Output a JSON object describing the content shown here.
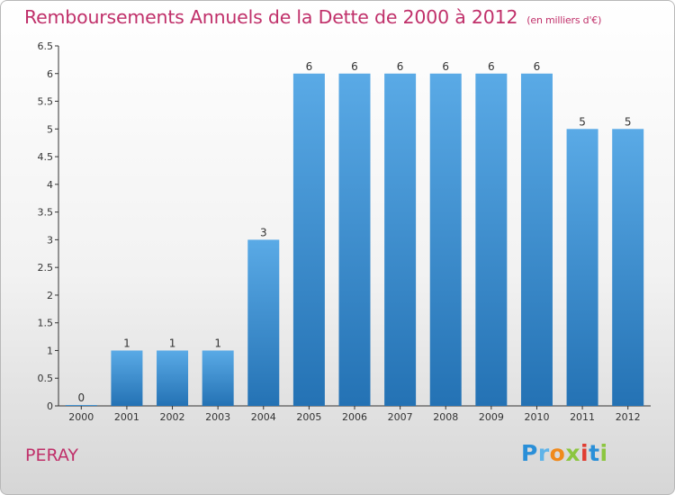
{
  "title": "Remboursements Annuels de la Dette de 2000 à 2012",
  "unit": "(en milliers d'€)",
  "commune": "PERAY",
  "logo": [
    "P",
    "r",
    "o",
    "x",
    "i",
    "t",
    "i"
  ],
  "colors": {
    "bar_top": "#5aaae6",
    "bar_bottom": "#2472b4",
    "title": "#c0306a",
    "axis": "#333333"
  },
  "chart_data": {
    "type": "bar",
    "categories": [
      "2000",
      "2001",
      "2002",
      "2003",
      "2004",
      "2005",
      "2006",
      "2007",
      "2008",
      "2009",
      "2010",
      "2011",
      "2012"
    ],
    "values": [
      0,
      1,
      1,
      1,
      3,
      6,
      6,
      6,
      6,
      6,
      6,
      5,
      5
    ],
    "data_labels": [
      "0",
      "1",
      "1",
      "1",
      "3",
      "6",
      "6",
      "6",
      "6",
      "6",
      "6",
      "5",
      "5"
    ],
    "ylim": [
      0,
      6.5
    ],
    "yticks": [
      "0",
      "0.5",
      "1",
      "1.5",
      "2",
      "2.5",
      "3",
      "3.5",
      "4",
      "4.5",
      "5",
      "5.5",
      "6",
      "6.5"
    ],
    "grid": false,
    "title": "Remboursements Annuels de la Dette de 2000 à 2012",
    "xlabel": "",
    "ylabel": ""
  }
}
